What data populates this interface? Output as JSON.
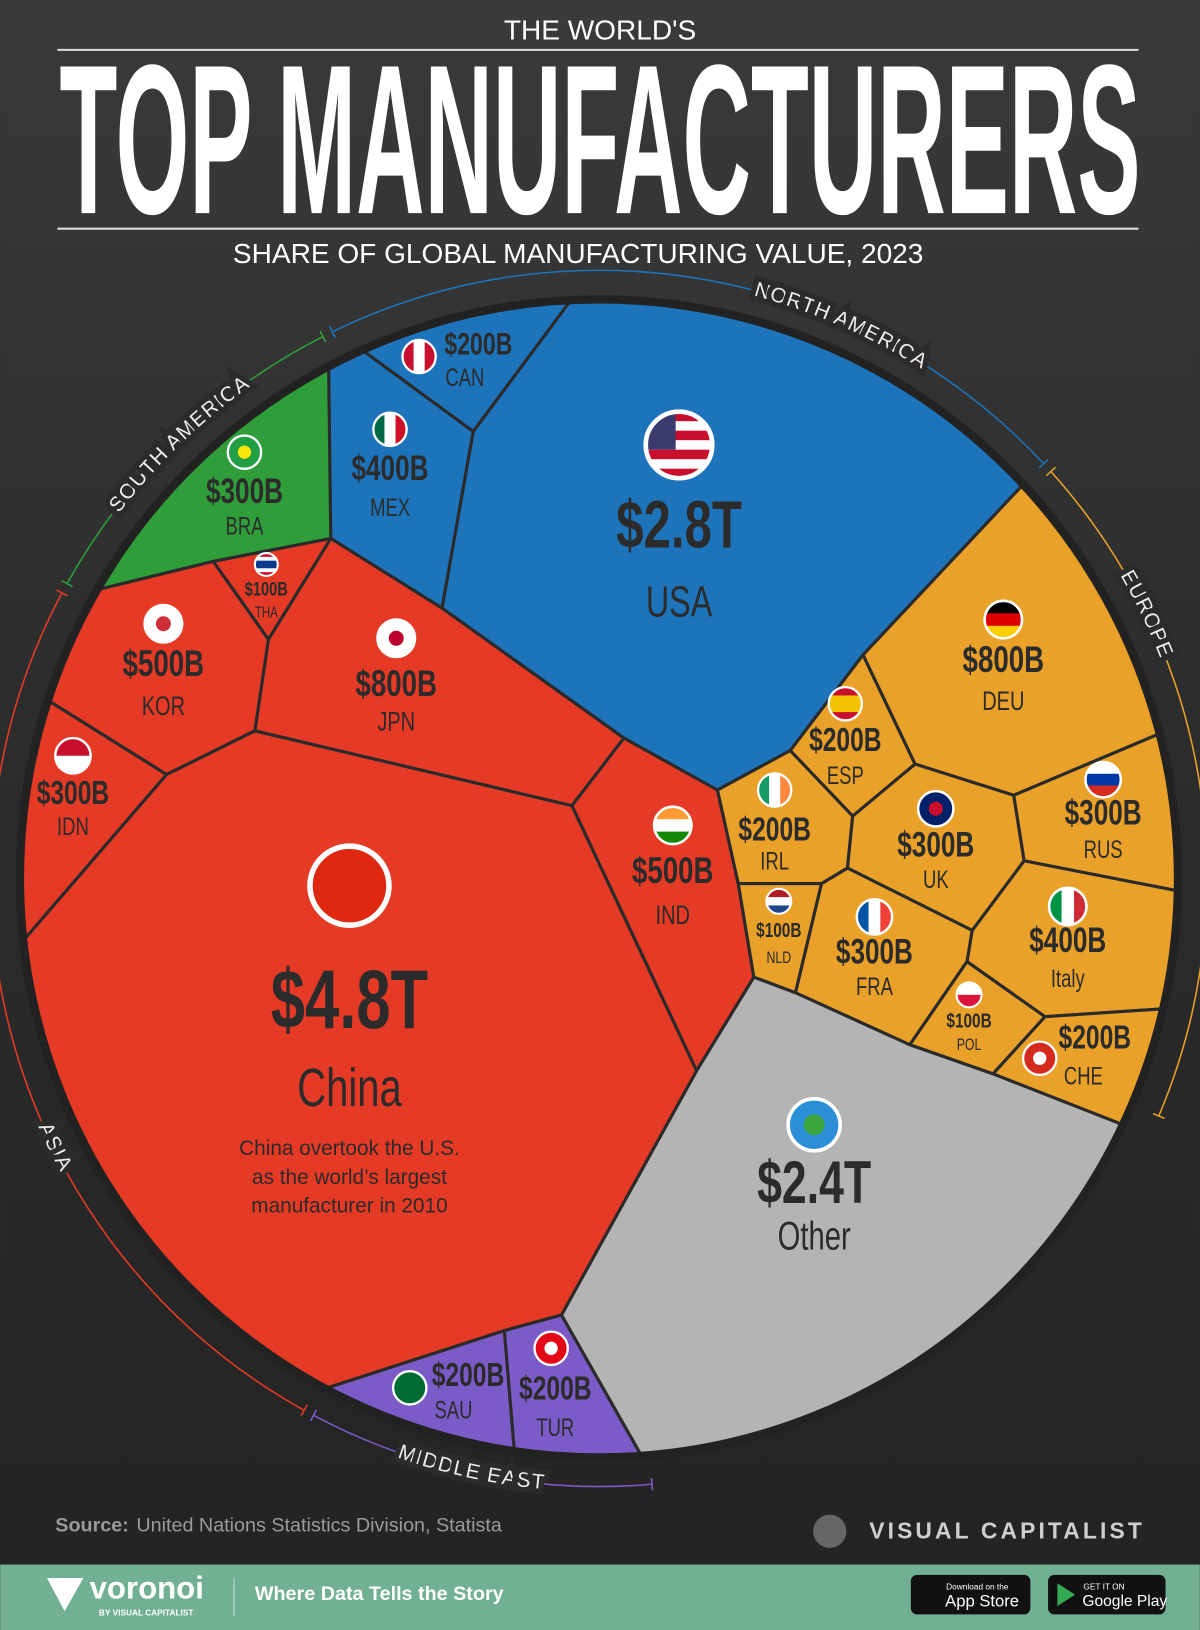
{
  "chart_data": {
    "type": "voronoi",
    "supertitle": "THE WORLD'S",
    "title": "TOP MANUFACTURERS",
    "subtitle": "SHARE OF GLOBAL MANUFACTURING VALUE, 2023",
    "groups": [
      {
        "name": "NORTH AMERICA",
        "color": "#1e74bb",
        "categories": [
          "USA",
          "MEX",
          "CAN"
        ],
        "values": [
          2800,
          400,
          200
        ],
        "value_labels": [
          "$2.8T",
          "$400B",
          "$200B"
        ]
      },
      {
        "name": "SOUTH AMERICA",
        "color": "#2f9e3a",
        "categories": [
          "BRA"
        ],
        "values": [
          300
        ],
        "value_labels": [
          "$300B"
        ]
      },
      {
        "name": "ASIA",
        "color": "#e53a25",
        "categories": [
          "China",
          "JPN",
          "KOR",
          "IND",
          "IDN",
          "THA"
        ],
        "values": [
          4800,
          800,
          500,
          500,
          300,
          100
        ],
        "value_labels": [
          "$4.8T",
          "$800B",
          "$500B",
          "$500B",
          "$300B",
          "$100B"
        ]
      },
      {
        "name": "EUROPE",
        "color": "#e9a12a",
        "categories": [
          "DEU",
          "Italy",
          "UK",
          "FRA",
          "RUS",
          "ESP",
          "IRL",
          "CHE",
          "NLD",
          "POL"
        ],
        "values": [
          800,
          400,
          300,
          300,
          300,
          200,
          200,
          200,
          100,
          100
        ],
        "value_labels": [
          "$800B",
          "$400B",
          "$300B",
          "$300B",
          "$300B",
          "$200B",
          "$200B",
          "$200B",
          "$100B",
          "$100B"
        ]
      },
      {
        "name": "MIDDLE EAST",
        "color": "#7a5bc7",
        "categories": [
          "SAU",
          "TUR"
        ],
        "values": [
          200,
          200
        ],
        "value_labels": [
          "$200B",
          "$200B"
        ]
      },
      {
        "color": "#b4b4b4",
        "categories": [
          "Other"
        ],
        "values": [
          2400
        ],
        "value_labels": [
          "$2.4T"
        ]
      }
    ],
    "annotation": [
      "China overtook the U.S.",
      "as the world’s largest",
      "manufacturer in 2010"
    ],
    "source_label": "Source:",
    "source": "United Nations Statistics Division, Statista"
  },
  "footer": {
    "brand": "VISUAL CAPITALIST",
    "app_name": "voronoi",
    "app_by": "BY VISUAL CAPITALIST",
    "tagline": "Where Data Tells the Story",
    "app_store_small": "Download on the",
    "app_store": "App Store",
    "play_small": "GET IT ON",
    "play": "Google Play"
  }
}
